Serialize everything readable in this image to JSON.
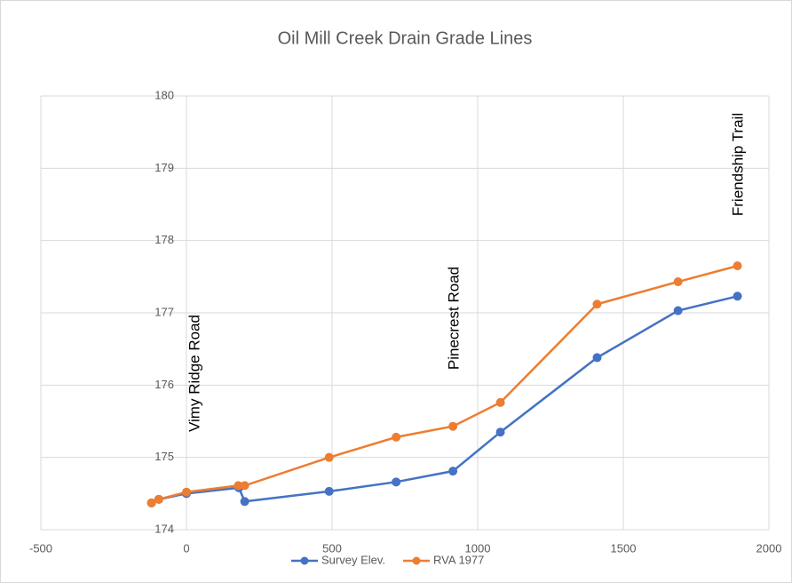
{
  "chart_data": {
    "type": "line",
    "title": "Oil Mill Creek Drain Grade Lines",
    "xlim": [
      -500,
      2000
    ],
    "xticks": [
      -500,
      0,
      500,
      1000,
      1500,
      2000
    ],
    "ylim": [
      174,
      180
    ],
    "yticks": [
      174,
      175,
      176,
      177,
      178,
      179,
      180
    ],
    "grid": true,
    "legend": "bottom",
    "annotations": [
      "Vimy Ridge Road",
      "Pinecrest Road",
      "Friendship Trail"
    ],
    "series": [
      {
        "name": "Survey Elev.",
        "color": "#4472c4",
        "x": [
          -120,
          -95,
          0,
          180,
          200,
          490,
          720,
          915,
          1078,
          1410,
          1688,
          1892
        ],
        "values": [
          174.37,
          174.42,
          174.5,
          174.58,
          174.39,
          174.53,
          174.66,
          174.81,
          175.35,
          176.38,
          177.03,
          177.23
        ]
      },
      {
        "name": "RVA 1977",
        "color": "#ed7d31",
        "x": [
          -120,
          -95,
          0,
          178,
          200,
          490,
          720,
          915,
          1078,
          1410,
          1688,
          1892
        ],
        "values": [
          174.37,
          174.42,
          174.52,
          174.61,
          174.61,
          175.0,
          175.28,
          175.43,
          175.76,
          177.12,
          177.43,
          177.65
        ]
      }
    ]
  }
}
